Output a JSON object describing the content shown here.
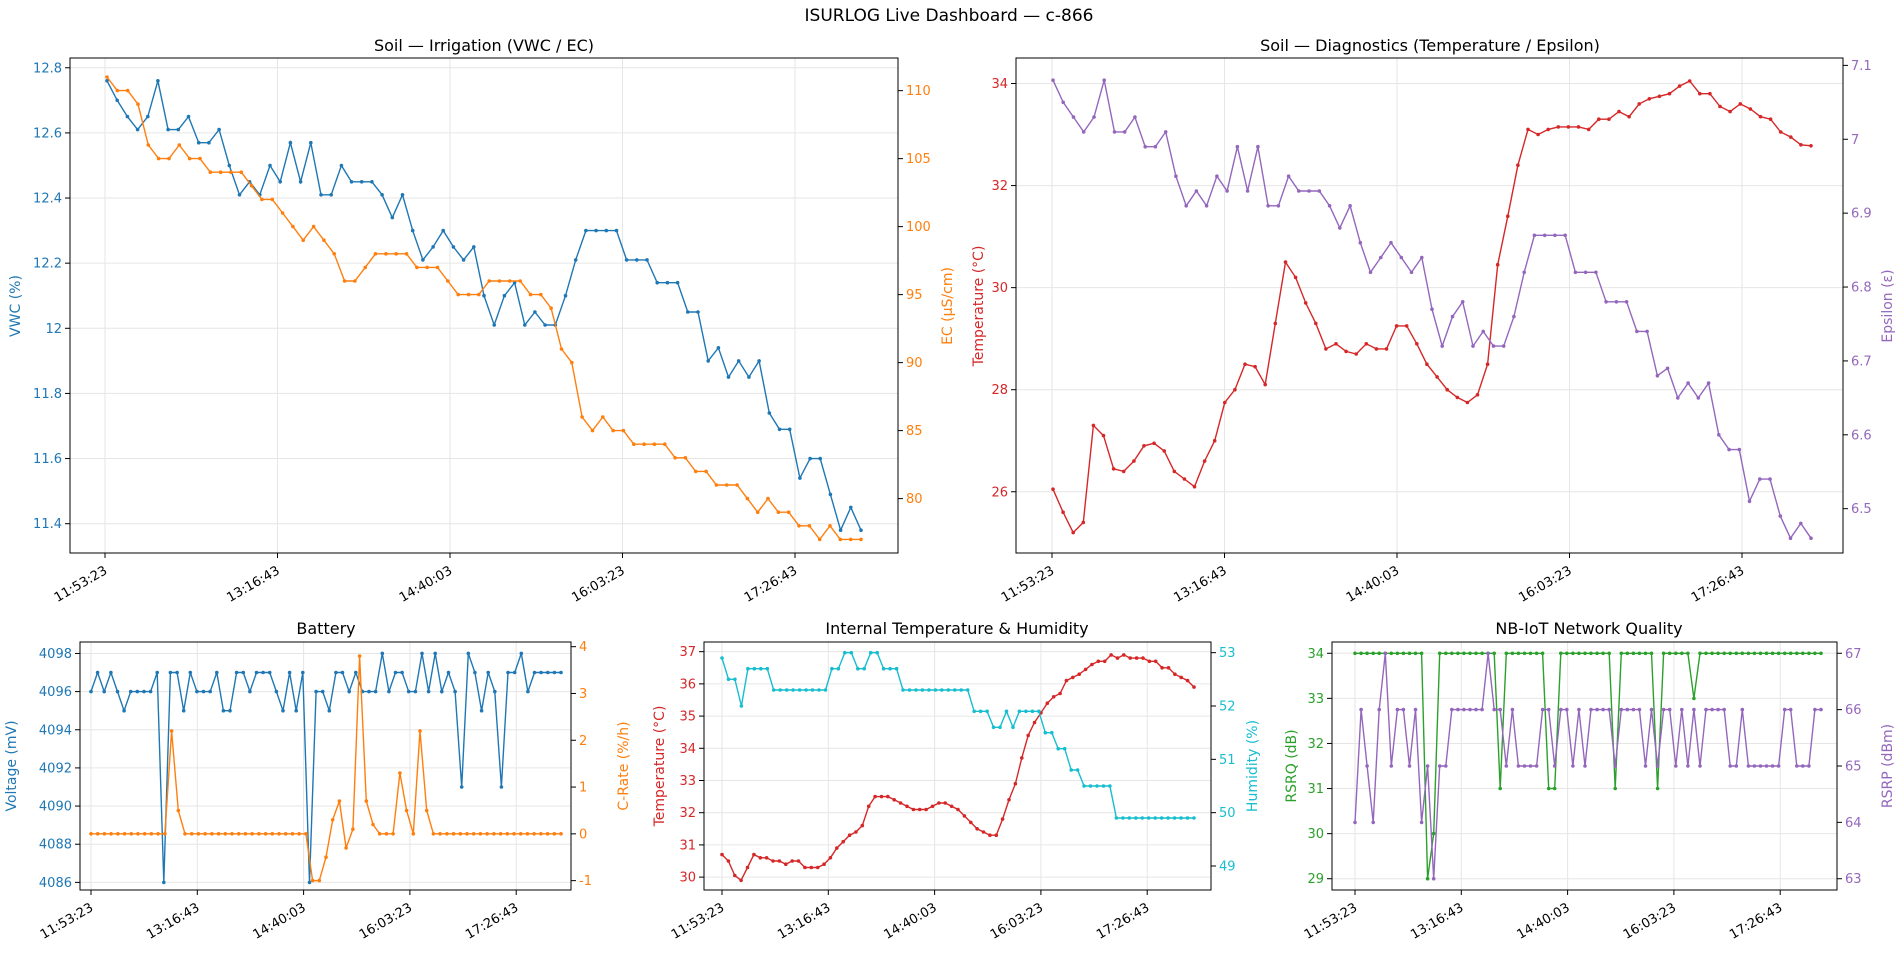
{
  "dashboard": {
    "title": "ISURLOG Live Dashboard — c-866"
  },
  "x_ticks": [
    "11:53:23",
    "13:16:43",
    "14:40:03",
    "16:03:23",
    "17:26:43"
  ],
  "colors": {
    "blue": "#1f77b4",
    "orange": "#ff7f0e",
    "red": "#d62728",
    "purple": "#9467bd",
    "cyan": "#17becf",
    "green": "#2ca02c"
  },
  "chart_data": [
    {
      "id": "irrigation",
      "type": "line",
      "title": "Soil — Irrigation (VWC / EC)",
      "xlabel": "",
      "x_ticks": [
        "11:53:23",
        "13:16:43",
        "14:40:03",
        "16:03:23",
        "17:26:43"
      ],
      "grid": true,
      "left": {
        "label": "VWC (%)",
        "color": "#1f77b4",
        "lim": [
          11.31,
          12.83
        ],
        "ticks": [
          11.4,
          11.6,
          11.8,
          12.0,
          12.2,
          12.4,
          12.6,
          12.8
        ],
        "values": [
          12.76,
          12.7,
          12.65,
          12.61,
          12.65,
          12.76,
          12.61,
          12.61,
          12.65,
          12.57,
          12.57,
          12.61,
          12.5,
          12.41,
          12.45,
          12.41,
          12.5,
          12.45,
          12.57,
          12.45,
          12.57,
          12.41,
          12.41,
          12.5,
          12.45,
          12.45,
          12.45,
          12.41,
          12.34,
          12.41,
          12.3,
          12.21,
          12.25,
          12.3,
          12.25,
          12.21,
          12.25,
          12.1,
          12.01,
          12.1,
          12.14,
          12.01,
          12.05,
          12.01,
          12.01,
          12.1,
          12.21,
          12.3,
          12.3,
          12.3,
          12.3,
          12.21,
          12.21,
          12.21,
          12.14,
          12.14,
          12.14,
          12.05,
          12.05,
          11.9,
          11.94,
          11.85,
          11.9,
          11.85,
          11.9,
          11.74,
          11.69,
          11.69,
          11.54,
          11.6,
          11.6,
          11.49,
          11.38,
          11.45,
          11.38
        ]
      },
      "right": {
        "label": "EC (µS/cm)",
        "color": "#ff7f0e",
        "lim": [
          76,
          112.4
        ],
        "ticks": [
          80,
          85,
          90,
          95,
          100,
          105,
          110
        ],
        "values": [
          111,
          110,
          110,
          109,
          106,
          105,
          105,
          106,
          105,
          105,
          104,
          104,
          104,
          104,
          103,
          102,
          102,
          101,
          100,
          99,
          100,
          99,
          98,
          96,
          96,
          97,
          98,
          98,
          98,
          98,
          97,
          97,
          97,
          96,
          95,
          95,
          95,
          96,
          96,
          96,
          96,
          95,
          95,
          94,
          91,
          90,
          86,
          85,
          86,
          85,
          85,
          84,
          84,
          84,
          84,
          83,
          83,
          82,
          82,
          81,
          81,
          81,
          80,
          79,
          80,
          79,
          79,
          78,
          78,
          77,
          78,
          77,
          77,
          77
        ]
      }
    },
    {
      "id": "diagnostics",
      "type": "line",
      "title": "Soil — Diagnostics (Temperature / Epsilon)",
      "xlabel": "",
      "x_ticks": [
        "11:53:23",
        "13:16:43",
        "14:40:03",
        "16:03:23",
        "17:26:43"
      ],
      "grid": true,
      "left": {
        "label": "Temperature (°C)",
        "color": "#d62728",
        "lim": [
          24.8,
          34.5
        ],
        "ticks": [
          26,
          28,
          30,
          32,
          34
        ],
        "values": [
          26.05,
          25.6,
          25.2,
          25.4,
          27.3,
          27.1,
          26.45,
          26.4,
          26.6,
          26.9,
          26.95,
          26.8,
          26.4,
          26.25,
          26.1,
          26.6,
          27.0,
          27.75,
          28.0,
          28.5,
          28.45,
          28.1,
          29.3,
          30.5,
          30.2,
          29.7,
          29.3,
          28.8,
          28.9,
          28.75,
          28.7,
          28.9,
          28.8,
          28.8,
          29.25,
          29.25,
          28.9,
          28.5,
          28.25,
          28.0,
          27.85,
          27.75,
          27.9,
          28.5,
          30.45,
          31.4,
          32.4,
          33.1,
          33.0,
          33.1,
          33.15,
          33.15,
          33.15,
          33.1,
          33.3,
          33.3,
          33.45,
          33.35,
          33.6,
          33.7,
          33.75,
          33.8,
          33.95,
          34.05,
          33.8,
          33.8,
          33.55,
          33.45,
          33.6,
          33.5,
          33.35,
          33.3,
          33.05,
          32.95,
          32.8,
          32.78
        ]
      },
      "right": {
        "label": "Epsilon (ε)",
        "color": "#9467bd",
        "lim": [
          6.44,
          7.11
        ],
        "ticks": [
          6.5,
          6.6,
          6.7,
          6.8,
          6.9,
          7.0,
          7.1
        ],
        "values": [
          7.08,
          7.05,
          7.03,
          7.01,
          7.03,
          7.08,
          7.01,
          7.01,
          7.03,
          6.99,
          6.99,
          7.01,
          6.95,
          6.91,
          6.93,
          6.91,
          6.95,
          6.93,
          6.99,
          6.93,
          6.99,
          6.91,
          6.91,
          6.95,
          6.93,
          6.93,
          6.93,
          6.91,
          6.88,
          6.91,
          6.86,
          6.82,
          6.84,
          6.86,
          6.84,
          6.82,
          6.84,
          6.77,
          6.72,
          6.76,
          6.78,
          6.72,
          6.74,
          6.72,
          6.72,
          6.76,
          6.82,
          6.87,
          6.87,
          6.87,
          6.87,
          6.82,
          6.82,
          6.82,
          6.78,
          6.78,
          6.78,
          6.74,
          6.74,
          6.68,
          6.69,
          6.65,
          6.67,
          6.65,
          6.67,
          6.6,
          6.58,
          6.58,
          6.51,
          6.54,
          6.54,
          6.49,
          6.46,
          6.48,
          6.46
        ]
      }
    },
    {
      "id": "battery",
      "type": "line",
      "title": "Battery",
      "xlabel": "",
      "x_ticks": [
        "11:53:23",
        "13:16:43",
        "14:40:03",
        "16:03:23",
        "17:26:43"
      ],
      "grid": true,
      "left": {
        "label": "Voltage (mV)",
        "color": "#1f77b4",
        "lim": [
          4085.6,
          4098.6
        ],
        "ticks": [
          4086,
          4088,
          4090,
          4092,
          4094,
          4096,
          4098
        ],
        "values": [
          4096,
          4097,
          4096,
          4097,
          4096,
          4095,
          4096,
          4096,
          4096,
          4096,
          4097,
          4086,
          4097,
          4097,
          4095,
          4097,
          4096,
          4096,
          4096,
          4097,
          4095,
          4095,
          4097,
          4097,
          4096,
          4097,
          4097,
          4097,
          4096,
          4095,
          4097,
          4095,
          4097,
          4086,
          4096,
          4096,
          4095,
          4097,
          4097,
          4096,
          4097,
          4096,
          4096,
          4096,
          4098,
          4096,
          4097,
          4097,
          4096,
          4096,
          4098,
          4096,
          4098,
          4096,
          4097,
          4096,
          4091,
          4098,
          4097,
          4095,
          4097,
          4096,
          4091,
          4097,
          4097,
          4098,
          4096,
          4097,
          4097,
          4097,
          4097,
          4097
        ]
      },
      "right": {
        "label": "C-Rate (%/h)",
        "color": "#ff7f0e",
        "lim": [
          -1.2,
          4.1
        ],
        "ticks": [
          -1,
          0,
          1,
          2,
          3,
          4
        ],
        "values": [
          0,
          0,
          0,
          0,
          0,
          0,
          0,
          0,
          0,
          0,
          0,
          0,
          2.2,
          0.5,
          0,
          0,
          0,
          0,
          0,
          0,
          0,
          0,
          0,
          0,
          0,
          0,
          0,
          0,
          0,
          0,
          0,
          0,
          0,
          -1,
          -1,
          -0.5,
          0.3,
          0.7,
          -0.3,
          0.1,
          3.8,
          0.7,
          0.2,
          0,
          0,
          0,
          1.3,
          0.5,
          0,
          2.2,
          0.5,
          0,
          0,
          0,
          0,
          0,
          0,
          0,
          0,
          0,
          0,
          0,
          0,
          0,
          0,
          0,
          0,
          0,
          0,
          0,
          0
        ]
      }
    },
    {
      "id": "internal",
      "type": "line",
      "title": "Internal Temperature & Humidity",
      "xlabel": "",
      "x_ticks": [
        "11:53:23",
        "13:16:43",
        "14:40:03",
        "16:03:23",
        "17:26:43"
      ],
      "grid": true,
      "left": {
        "label": "Temperature (°C)",
        "color": "#d62728",
        "lim": [
          29.6,
          37.3
        ],
        "ticks": [
          30,
          31,
          32,
          33,
          34,
          35,
          36,
          37
        ],
        "values": [
          30.7,
          30.5,
          30.05,
          29.9,
          30.3,
          30.7,
          30.6,
          30.6,
          30.5,
          30.5,
          30.4,
          30.5,
          30.5,
          30.3,
          30.3,
          30.3,
          30.4,
          30.6,
          30.9,
          31.1,
          31.3,
          31.4,
          31.6,
          32.2,
          32.5,
          32.5,
          32.5,
          32.4,
          32.3,
          32.2,
          32.1,
          32.1,
          32.1,
          32.2,
          32.3,
          32.3,
          32.2,
          32.1,
          31.9,
          31.7,
          31.5,
          31.4,
          31.3,
          31.3,
          31.8,
          32.4,
          32.9,
          33.7,
          34.4,
          34.8,
          35.1,
          35.4,
          35.6,
          35.7,
          36.1,
          36.2,
          36.3,
          36.45,
          36.6,
          36.7,
          36.7,
          36.9,
          36.8,
          36.9,
          36.8,
          36.8,
          36.8,
          36.7,
          36.7,
          36.5,
          36.5,
          36.3,
          36.2,
          36.1,
          35.9
        ]
      },
      "right": {
        "label": "Humidity (%)",
        "color": "#17becf",
        "lim": [
          48.55,
          53.2
        ],
        "ticks": [
          49,
          50,
          51,
          52,
          53
        ],
        "values": [
          52.9,
          52.5,
          52.5,
          52,
          52.7,
          52.7,
          52.7,
          52.7,
          52.3,
          52.3,
          52.3,
          52.3,
          52.3,
          52.3,
          52.3,
          52.3,
          52.3,
          52.7,
          52.7,
          53,
          53,
          52.7,
          52.7,
          53,
          53,
          52.7,
          52.7,
          52.7,
          52.3,
          52.3,
          52.3,
          52.3,
          52.3,
          52.3,
          52.3,
          52.3,
          52.3,
          52.3,
          52.3,
          51.9,
          51.9,
          51.9,
          51.6,
          51.6,
          51.9,
          51.6,
          51.9,
          51.9,
          51.9,
          51.9,
          51.5,
          51.5,
          51.2,
          51.2,
          50.8,
          50.8,
          50.5,
          50.5,
          50.5,
          50.5,
          50.5,
          49.9,
          49.9,
          49.9,
          49.9,
          49.9,
          49.9,
          49.9,
          49.9,
          49.9,
          49.9,
          49.9,
          49.9,
          49.9
        ]
      }
    },
    {
      "id": "network",
      "type": "line",
      "title": "NB-IoT Network Quality",
      "xlabel": "",
      "x_ticks": [
        "11:53:23",
        "13:16:43",
        "14:40:03",
        "16:03:23",
        "17:26:43"
      ],
      "grid": true,
      "left": {
        "label": "RSRQ (dB)",
        "color": "#2ca02c",
        "lim": [
          28.75,
          34.25
        ],
        "ticks": [
          29,
          30,
          31,
          32,
          33,
          34
        ],
        "values": [
          34,
          34,
          34,
          34,
          34,
          34,
          34,
          34,
          34,
          34,
          34,
          34,
          29,
          30,
          34,
          34,
          34,
          34,
          34,
          34,
          34,
          34,
          34,
          34,
          31,
          34,
          34,
          34,
          34,
          34,
          34,
          34,
          31,
          31,
          34,
          34,
          34,
          34,
          34,
          34,
          34,
          34,
          34,
          31,
          34,
          34,
          34,
          34,
          34,
          34,
          31,
          34,
          34,
          34,
          34,
          34,
          33,
          34,
          34,
          34,
          34,
          34,
          34,
          34,
          34,
          34,
          34,
          34,
          34,
          34,
          34,
          34,
          34,
          34,
          34,
          34,
          34,
          34
        ]
      },
      "right": {
        "label": "RSRP (dBm)",
        "color": "#9467bd",
        "lim": [
          62.8,
          67.2
        ],
        "ticks": [
          63,
          64,
          65,
          66,
          67
        ],
        "values": [
          64,
          66,
          65,
          64,
          66,
          67,
          65,
          66,
          66,
          65,
          66,
          64,
          65,
          63,
          65,
          65,
          66,
          66,
          66,
          66,
          66,
          66,
          67,
          66,
          66,
          65,
          66,
          65,
          65,
          65,
          65,
          66,
          66,
          65,
          66,
          66,
          65,
          66,
          65,
          66,
          66,
          66,
          66,
          65,
          66,
          66,
          66,
          66,
          65,
          66,
          65,
          66,
          66,
          65,
          66,
          65,
          66,
          65,
          66,
          66,
          66,
          66,
          65,
          65,
          66,
          65,
          65,
          65,
          65,
          65,
          65,
          66,
          66,
          65,
          65,
          65,
          66,
          66
        ]
      }
    }
  ]
}
